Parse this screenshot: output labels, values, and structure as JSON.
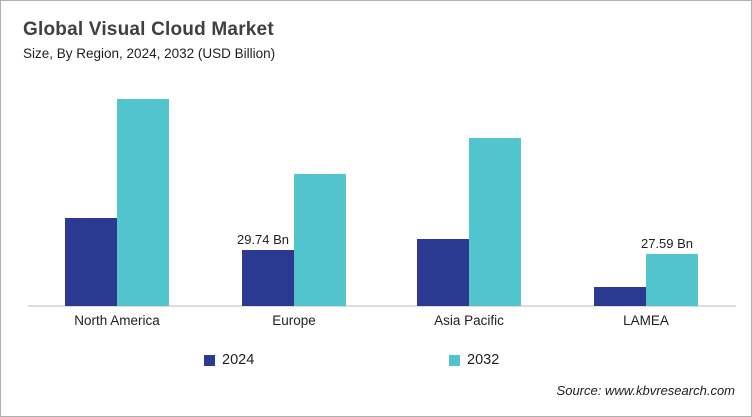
{
  "header": {
    "title": "Global Visual Cloud Market",
    "subtitle": "Size, By Region, 2024, 2032 (USD Billion)"
  },
  "chart_data": {
    "type": "bar",
    "title": "Global Visual Cloud Market",
    "subtitle": "Size, By Region, 2024, 2032 (USD Billion)",
    "unit": "USD Billion",
    "categories": [
      "North America",
      "Europe",
      "Asia Pacific",
      "LAMEA"
    ],
    "series": [
      {
        "name": "2024",
        "color": "#2B3990",
        "values": [
          46.7,
          29.74,
          35.6,
          10.1
        ],
        "labels": [
          null,
          "29.74 Bn",
          null,
          null
        ]
      },
      {
        "name": "2032",
        "color": "#52C4CE",
        "values": [
          110.0,
          70.1,
          89.2,
          27.59
        ],
        "labels": [
          null,
          null,
          null,
          "27.59 Bn"
        ]
      }
    ],
    "ylim": [
      0,
      115.3
    ],
    "gridlines": false,
    "axis_line_color": "#DCDCDC",
    "legend_position": "bottom"
  },
  "footer": {
    "source": "Source: www.kbvresearch.com"
  }
}
